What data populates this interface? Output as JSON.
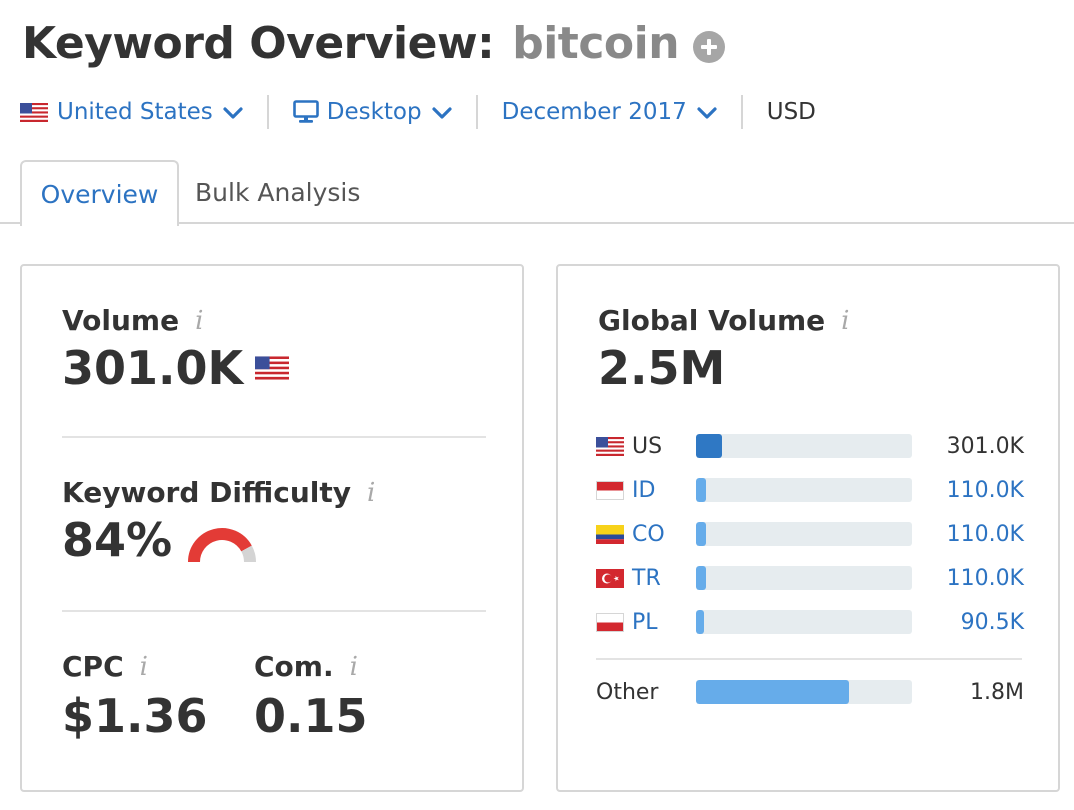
{
  "header": {
    "title_prefix": "Keyword Overview:",
    "keyword": "bitcoin"
  },
  "filters": {
    "country": "United States",
    "device": "Desktop",
    "date": "December 2017",
    "currency": "USD"
  },
  "tabs": {
    "overview": "Overview",
    "bulk": "Bulk Analysis"
  },
  "left_card": {
    "volume_label": "Volume",
    "volume_value": "301.0K",
    "kd_label": "Keyword Difficulty",
    "kd_value": "84%",
    "kd_percent": 84,
    "cpc_label": "CPC",
    "cpc_value": "$1.36",
    "com_label": "Com.",
    "com_value": "0.15",
    "info_glyph": "i"
  },
  "right_card": {
    "label": "Global Volume",
    "value": "2.5M",
    "countries": [
      {
        "code": "US",
        "value": "301.0K",
        "share": 0.12,
        "highlight": true
      },
      {
        "code": "ID",
        "value": "110.0K",
        "share": 0.044,
        "highlight": false
      },
      {
        "code": "CO",
        "value": "110.0K",
        "share": 0.044,
        "highlight": false
      },
      {
        "code": "TR",
        "value": "110.0K",
        "share": 0.044,
        "highlight": false
      },
      {
        "code": "PL",
        "value": "90.5K",
        "share": 0.036,
        "highlight": false
      }
    ],
    "other": {
      "label": "Other",
      "value": "1.8M",
      "share": 0.71
    }
  },
  "colors": {
    "accent": "#2c73c2",
    "bar_primary": "#2f78c4",
    "bar_secondary": "#66acea",
    "kd_red": "#e33b36",
    "kd_gray": "#d4d4d4",
    "track": "#e6ecef"
  },
  "icons": {
    "add": "plus-circle-icon",
    "dropdown": "chevron-down-icon",
    "device": "monitor-icon",
    "info": "info-icon"
  }
}
